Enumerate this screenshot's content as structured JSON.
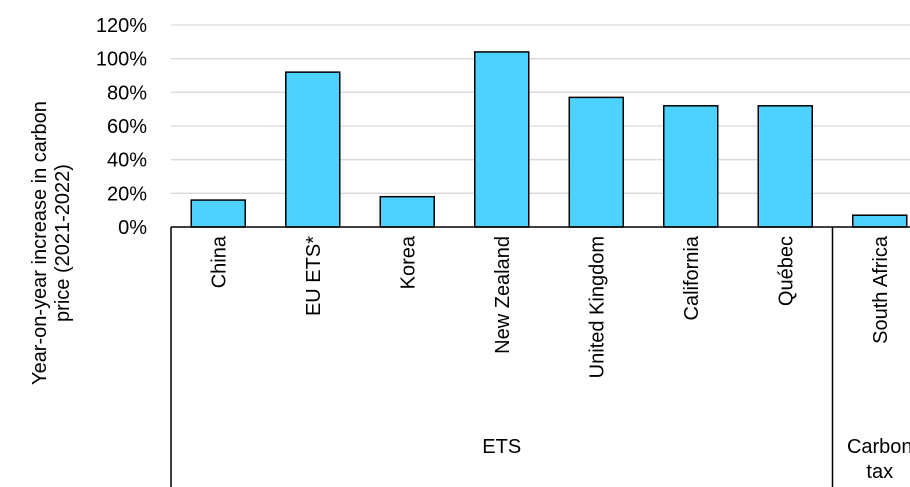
{
  "chart_data": {
    "type": "bar",
    "ylabel": [
      "Year-on-year increase in carbon",
      "price (2021-2022)"
    ],
    "ylim": [
      0,
      120
    ],
    "yticks": [
      0,
      20,
      40,
      60,
      80,
      100,
      120
    ],
    "ytick_suffix": "%",
    "grid": true,
    "categories": [
      "China",
      "EU ETS*",
      "Korea",
      "New Zealand",
      "United Kingdom",
      "California",
      "Québec",
      "South Africa"
    ],
    "values": [
      16,
      92,
      18,
      104,
      77,
      72,
      72,
      7
    ],
    "groups": [
      {
        "label": "ETS",
        "count": 7
      },
      {
        "label": "Carbon\ntax",
        "count": 1
      }
    ],
    "bar_color": "#4dd2ff",
    "bar_stroke": "#000000",
    "grid_color": "#d9d9d9"
  }
}
